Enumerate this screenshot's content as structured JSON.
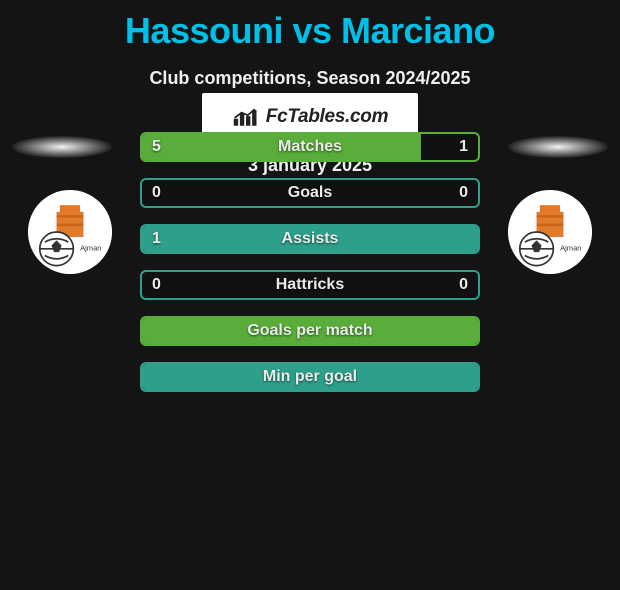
{
  "title": "Hassouni vs Marciano",
  "subtitle": "Club competitions, Season 2024/2025",
  "date": "3 january 2025",
  "brand": "FcTables.com",
  "colors": {
    "title": "#00c0e8",
    "text": "#eeeeee",
    "green": "#5aad3a",
    "teal": "#2e9f8b",
    "bg": "#141414"
  },
  "bars": [
    {
      "label": "Matches",
      "left": "5",
      "right": "1",
      "style": "green",
      "fill_pct": 83,
      "show_left": true,
      "show_right": true
    },
    {
      "label": "Goals",
      "left": "0",
      "right": "0",
      "style": "teal",
      "fill_pct": 0,
      "show_left": true,
      "show_right": true
    },
    {
      "label": "Assists",
      "left": "1",
      "right": "",
      "style": "teal",
      "fill_pct": 100,
      "show_left": true,
      "show_right": false
    },
    {
      "label": "Hattricks",
      "left": "0",
      "right": "0",
      "style": "teal",
      "fill_pct": 0,
      "show_left": true,
      "show_right": true
    },
    {
      "label": "Goals per match",
      "left": "",
      "right": "",
      "style": "green",
      "fill_pct": 100,
      "show_left": false,
      "show_right": false
    },
    {
      "label": "Min per goal",
      "left": "",
      "right": "",
      "style": "teal",
      "fill_pct": 100,
      "show_left": false,
      "show_right": false
    }
  ],
  "badge": {
    "bg": "#ffffff",
    "tower_color": "#e27a2a",
    "ball_color": "#333333"
  }
}
